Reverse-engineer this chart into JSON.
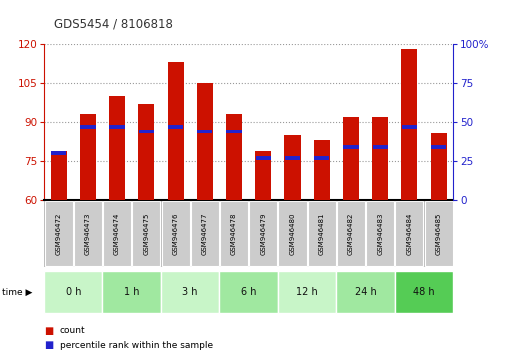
{
  "title": "GDS5454 / 8106818",
  "samples": [
    "GSM946472",
    "GSM946473",
    "GSM946474",
    "GSM946475",
    "GSM946476",
    "GSM946477",
    "GSM946478",
    "GSM946479",
    "GSM946480",
    "GSM946481",
    "GSM946482",
    "GSM946483",
    "GSM946484",
    "GSM946485"
  ],
  "count_values": [
    79,
    93,
    100,
    97,
    113,
    105,
    93,
    79,
    85,
    83,
    92,
    92,
    118,
    86
  ],
  "percentile_values": [
    30,
    47,
    47,
    44,
    47,
    44,
    44,
    27,
    27,
    27,
    34,
    34,
    47,
    34
  ],
  "bar_color": "#cc1100",
  "blue_color": "#2222cc",
  "left_ylim": [
    60,
    120
  ],
  "right_ylim": [
    0,
    100
  ],
  "left_yticks": [
    60,
    75,
    90,
    105,
    120
  ],
  "right_yticks": [
    0,
    25,
    50,
    75,
    100
  ],
  "right_yticklabels": [
    "0",
    "25",
    "50",
    "75",
    "100%"
  ],
  "time_groups": [
    {
      "label": "0 h",
      "indices": [
        0,
        1
      ],
      "color": "#c8f5c8"
    },
    {
      "label": "1 h",
      "indices": [
        2,
        3
      ],
      "color": "#a0e8a0"
    },
    {
      "label": "3 h",
      "indices": [
        4,
        5
      ],
      "color": "#c8f5c8"
    },
    {
      "label": "6 h",
      "indices": [
        6,
        7
      ],
      "color": "#a0e8a0"
    },
    {
      "label": "12 h",
      "indices": [
        8,
        9
      ],
      "color": "#c8f5c8"
    },
    {
      "label": "24 h",
      "indices": [
        10,
        11
      ],
      "color": "#a0e8a0"
    },
    {
      "label": "48 h",
      "indices": [
        12,
        13
      ],
      "color": "#55cc55"
    }
  ],
  "bar_width": 0.55,
  "grid_color": "#999999",
  "background_color": "#ffffff",
  "sample_bg_color": "#bbbbbb",
  "legend_count_label": "count",
  "legend_pct_label": "percentile rank within the sample"
}
